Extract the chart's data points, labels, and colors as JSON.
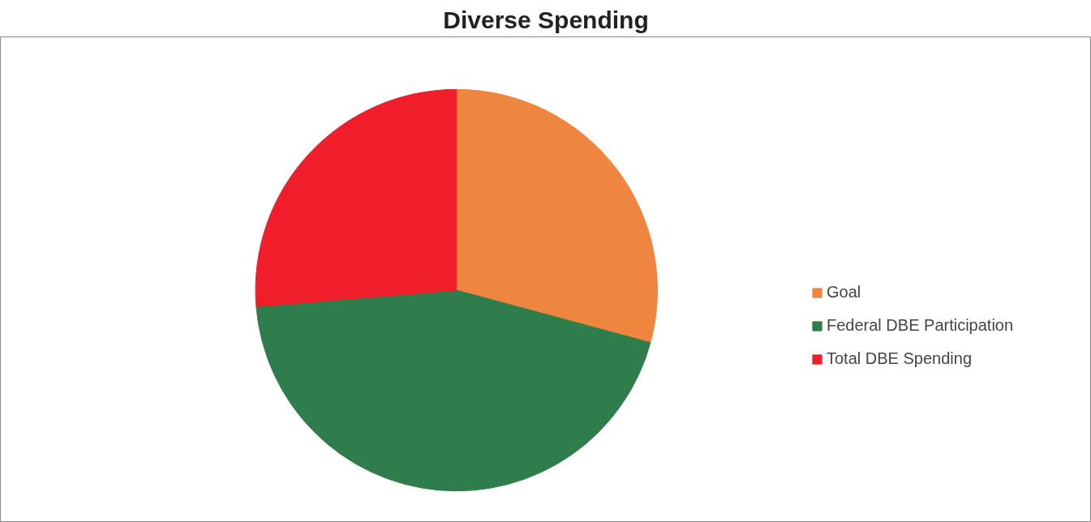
{
  "chart_data": {
    "type": "pie",
    "title": "Diverse Spending",
    "categories": [
      "Goal",
      "Federal DBE Participation",
      "Total DBE Spending"
    ],
    "values": [
      29.2,
      44.5,
      26.3
    ],
    "colors": [
      "#ef8640",
      "#2f7d4c",
      "#f01e2a"
    ],
    "legend": "right"
  }
}
